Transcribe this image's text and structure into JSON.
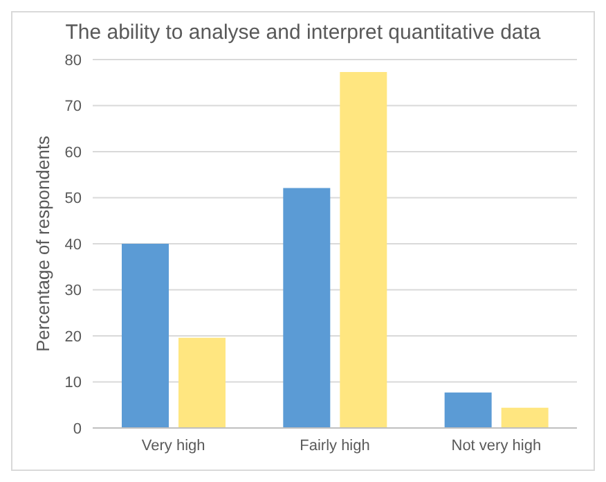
{
  "chart_data": {
    "type": "bar",
    "title": "The ability to analyse and interpret quantitative data",
    "ylabel": "Percentage of respondents",
    "categories": [
      "Very high",
      "Fairly high",
      "Not very high"
    ],
    "series": [
      {
        "color": "#5b9bd5",
        "values": [
          40,
          52.1,
          7.7
        ]
      },
      {
        "color": "#ffe680",
        "values": [
          19.6,
          77.3,
          4.4
        ]
      }
    ],
    "ylim": [
      0,
      80
    ],
    "yticks": [
      0,
      10,
      20,
      30,
      40,
      50,
      60,
      70,
      80
    ],
    "grid": "y",
    "legend": false
  }
}
